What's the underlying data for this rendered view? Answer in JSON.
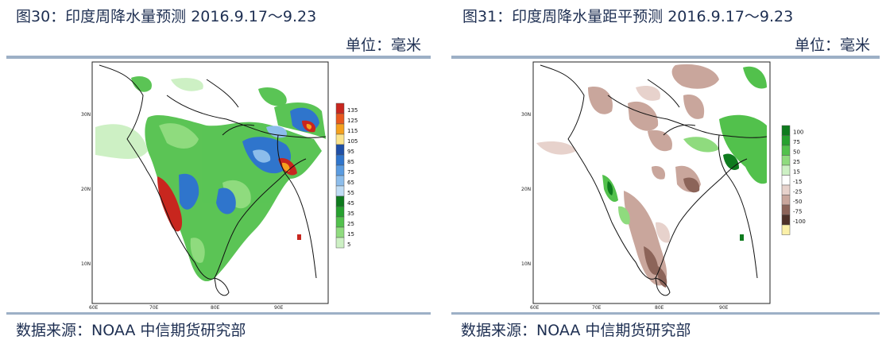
{
  "panel_left": {
    "title": "图30：印度周降水量预测 2016.9.17～9.23",
    "unit": "单位：毫米",
    "source": "数据来源：NOAA 中信期货研究部",
    "lat_ticks": [
      "30N",
      "20N",
      "10N"
    ],
    "lon_ticks": [
      "60E",
      "70E",
      "80E",
      "90E"
    ],
    "legend": [
      {
        "label": "135",
        "color": "#c8261e"
      },
      {
        "label": "125",
        "color": "#e8581e"
      },
      {
        "label": "115",
        "color": "#f5a11e"
      },
      {
        "label": "105",
        "color": "#fbe48c"
      },
      {
        "label": "95",
        "color": "#1f4fa6"
      },
      {
        "label": "85",
        "color": "#2f75cc"
      },
      {
        "label": "75",
        "color": "#5a9be0"
      },
      {
        "label": "65",
        "color": "#8cbdeb"
      },
      {
        "label": "55",
        "color": "#c0dcf4"
      },
      {
        "label": "45",
        "color": "#0e7b1e"
      },
      {
        "label": "35",
        "color": "#27a12f"
      },
      {
        "label": "25",
        "color": "#52c14c"
      },
      {
        "label": "15",
        "color": "#8fdb7e"
      },
      {
        "label": "5",
        "color": "#cdf0c4"
      }
    ]
  },
  "panel_right": {
    "title": "图31：印度周降水量距平预测 2016.9.17～9.23",
    "unit": "单位：毫米",
    "source": "数据来源：NOAA 中信期货研究部",
    "lat_ticks": [
      "30N",
      "20N",
      "10N"
    ],
    "lon_ticks": [
      "60E",
      "70E",
      "80E",
      "90E"
    ],
    "legend": [
      {
        "label": "100",
        "color": "#0e7b1e"
      },
      {
        "label": "75",
        "color": "#27a12f"
      },
      {
        "label": "50",
        "color": "#52c14c"
      },
      {
        "label": "25",
        "color": "#8fdb7e"
      },
      {
        "label": "15",
        "color": "#cdf0c4"
      },
      {
        "label": "-15",
        "color": "#ffffff"
      },
      {
        "label": "-25",
        "color": "#e7d2cc"
      },
      {
        "label": "-50",
        "color": "#c9a69c"
      },
      {
        "label": "-75",
        "color": "#8c6459"
      },
      {
        "label": "-100",
        "color": "#4e3128"
      },
      {
        "label": "",
        "color": "#fbf0a8"
      }
    ]
  }
}
